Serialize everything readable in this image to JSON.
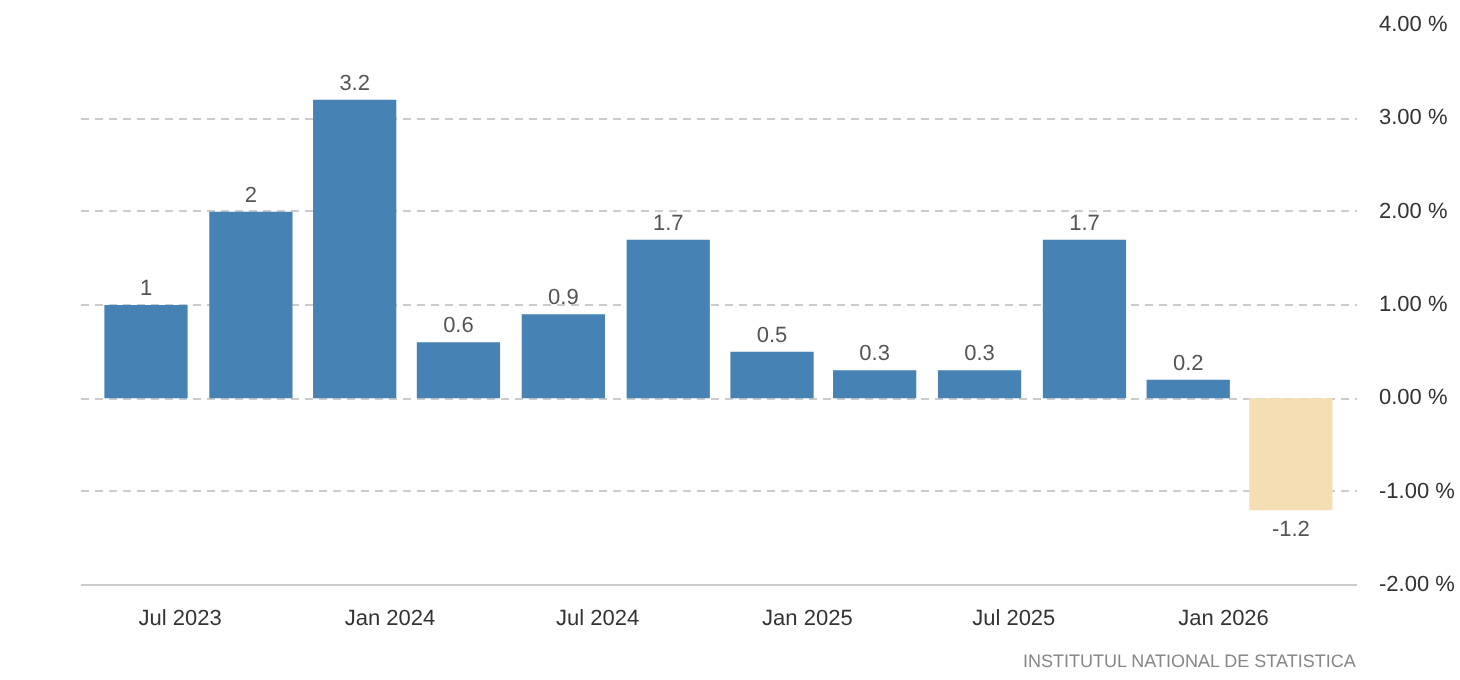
{
  "chart_data": {
    "type": "bar",
    "x": [
      "2023-06",
      "2023-09",
      "2023-12",
      "2024-03",
      "2024-06",
      "2024-09",
      "2024-12",
      "2025-03",
      "2025-06",
      "2025-09",
      "2025-12",
      "2026-03"
    ],
    "values": [
      1,
      2,
      3.2,
      0.6,
      0.9,
      1.7,
      0.5,
      0.3,
      0.3,
      1.7,
      0.2,
      -1.2
    ],
    "colors": [
      "#4682b4",
      "#4682b4",
      "#4682b4",
      "#4682b4",
      "#4682b4",
      "#4682b4",
      "#4682b4",
      "#4682b4",
      "#4682b4",
      "#4682b4",
      "#4682b4",
      "#f5deb3"
    ],
    "data_labels": true,
    "xlim": [
      "2023-04-05",
      "2026-04-28"
    ],
    "xticks": [
      {
        "value": "2023-07",
        "label": "Jul 2023"
      },
      {
        "value": "2024-01",
        "label": "Jan 2024"
      },
      {
        "value": "2024-07",
        "label": "Jul 2024"
      },
      {
        "value": "2025-01",
        "label": "Jan 2025"
      },
      {
        "value": "2025-07",
        "label": "Jul 2025"
      },
      {
        "value": "2026-01",
        "label": "Jan 2026"
      }
    ],
    "ylim": [
      -2,
      4
    ],
    "yticks": [
      {
        "value": -2,
        "label": "-2.00 %"
      },
      {
        "value": -1,
        "label": "-1.00 %"
      },
      {
        "value": 0,
        "label": "0.00 %"
      },
      {
        "value": 1,
        "label": "1.00 %"
      },
      {
        "value": 2,
        "label": "2.00 %"
      },
      {
        "value": 3,
        "label": "3.00 %"
      },
      {
        "value": 4,
        "label": "4.00 %"
      }
    ],
    "grid": "y",
    "annotations": [
      "INSTITUTUL NATIONAL DE STATISTICA"
    ]
  }
}
